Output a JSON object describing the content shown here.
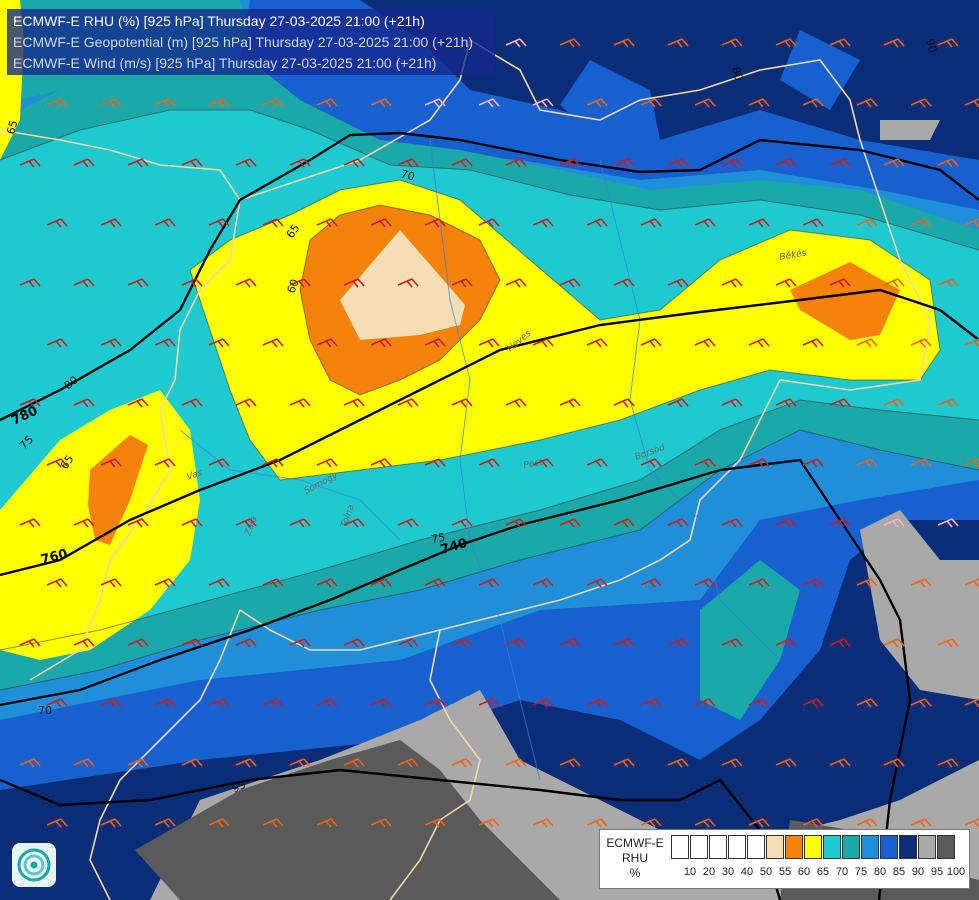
{
  "header": {
    "line1": "ECMWF-E RHU (%) [925 hPa] Thursday 27-03-2025 21:00 (+21h)",
    "line2": "ECMWF-E Geopotential (m) [925 hPa] Thursday 27-03-2025 21:00 (+21h)",
    "line3": "ECMWF-E Wind (m/s) [925 hPa] Thursday 27-03-2025 21:00 (+21h)"
  },
  "legend": {
    "label_line1": "ECMWF-E",
    "label_line2": "RHU",
    "label_line3": "%",
    "ticks": [
      "10",
      "20",
      "30",
      "40",
      "50",
      "55",
      "60",
      "65",
      "70",
      "75",
      "80",
      "85",
      "90",
      "95",
      "100"
    ],
    "colors": [
      "#ffffff",
      "#ffffff",
      "#ffffff",
      "#ffffff",
      "#ffffff",
      "#f5deb3",
      "#f5820a",
      "#ffff00",
      "#1ecad0",
      "#1aa8a8",
      "#1e8fd8",
      "#1660d0",
      "#0a2d78",
      "#a9a9a9",
      "#5a5a5a"
    ]
  },
  "rhu_labels": [
    "65",
    "70",
    "65",
    "60",
    "80",
    "75",
    "65",
    "75",
    "70",
    "95",
    "80",
    "90"
  ],
  "geopotential_labels": [
    "780",
    "760",
    "740"
  ],
  "place_labels": [
    "Vas",
    "Somogy",
    "Tolna",
    "Zala",
    "Pest",
    "Borsod",
    "Heves",
    "Békés"
  ],
  "colors": {
    "rhu_95": "#a9a9a9",
    "rhu_100": "#5a5a5a",
    "rhu_90": "#0a2d78",
    "rhu_85": "#1660d0",
    "rhu_80": "#1e8fd8",
    "rhu_75": "#1aa8a8",
    "rhu_70": "#1ecad0",
    "rhu_65": "#ffff00",
    "rhu_60": "#f5820a",
    "rhu_55": "#f5deb3",
    "border": "#f0d8a8",
    "isohypse": "#000000",
    "wind_strong": "#c81e1e",
    "wind_medium": "#f06414",
    "wind_weak": "#ffb4c8"
  },
  "icons": {
    "logo": "ecmwf-logo-icon"
  }
}
